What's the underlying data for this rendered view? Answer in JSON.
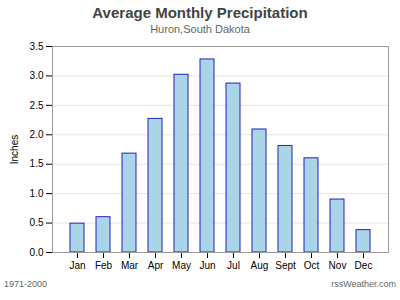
{
  "chart_data": {
    "type": "bar",
    "title": "Average Monthly Precipitation",
    "subtitle": "Huron,South Dakota",
    "ylabel": "Inches",
    "footer_left": "1971-2000",
    "footer_right": "rssWeather.com",
    "categories": [
      "Jan",
      "Feb",
      "Mar",
      "Apr",
      "May",
      "Jun",
      "Jul",
      "Aug",
      "Sept",
      "Oct",
      "Nov",
      "Dec"
    ],
    "values": [
      0.49,
      0.6,
      1.68,
      2.27,
      3.02,
      3.28,
      2.87,
      2.09,
      1.81,
      1.6,
      0.9,
      0.38
    ],
    "color": "#aad4e8",
    "ylim": [
      0,
      3.5
    ],
    "yticks": [
      {
        "value": 0,
        "label": "0.0"
      },
      0.5,
      {
        "value": 1,
        "label": "1.0"
      },
      1.5,
      {
        "value": 2,
        "label": "2.0"
      },
      2.5,
      {
        "value": 3,
        "label": "3.0"
      },
      3.5
    ],
    "grid": true
  }
}
